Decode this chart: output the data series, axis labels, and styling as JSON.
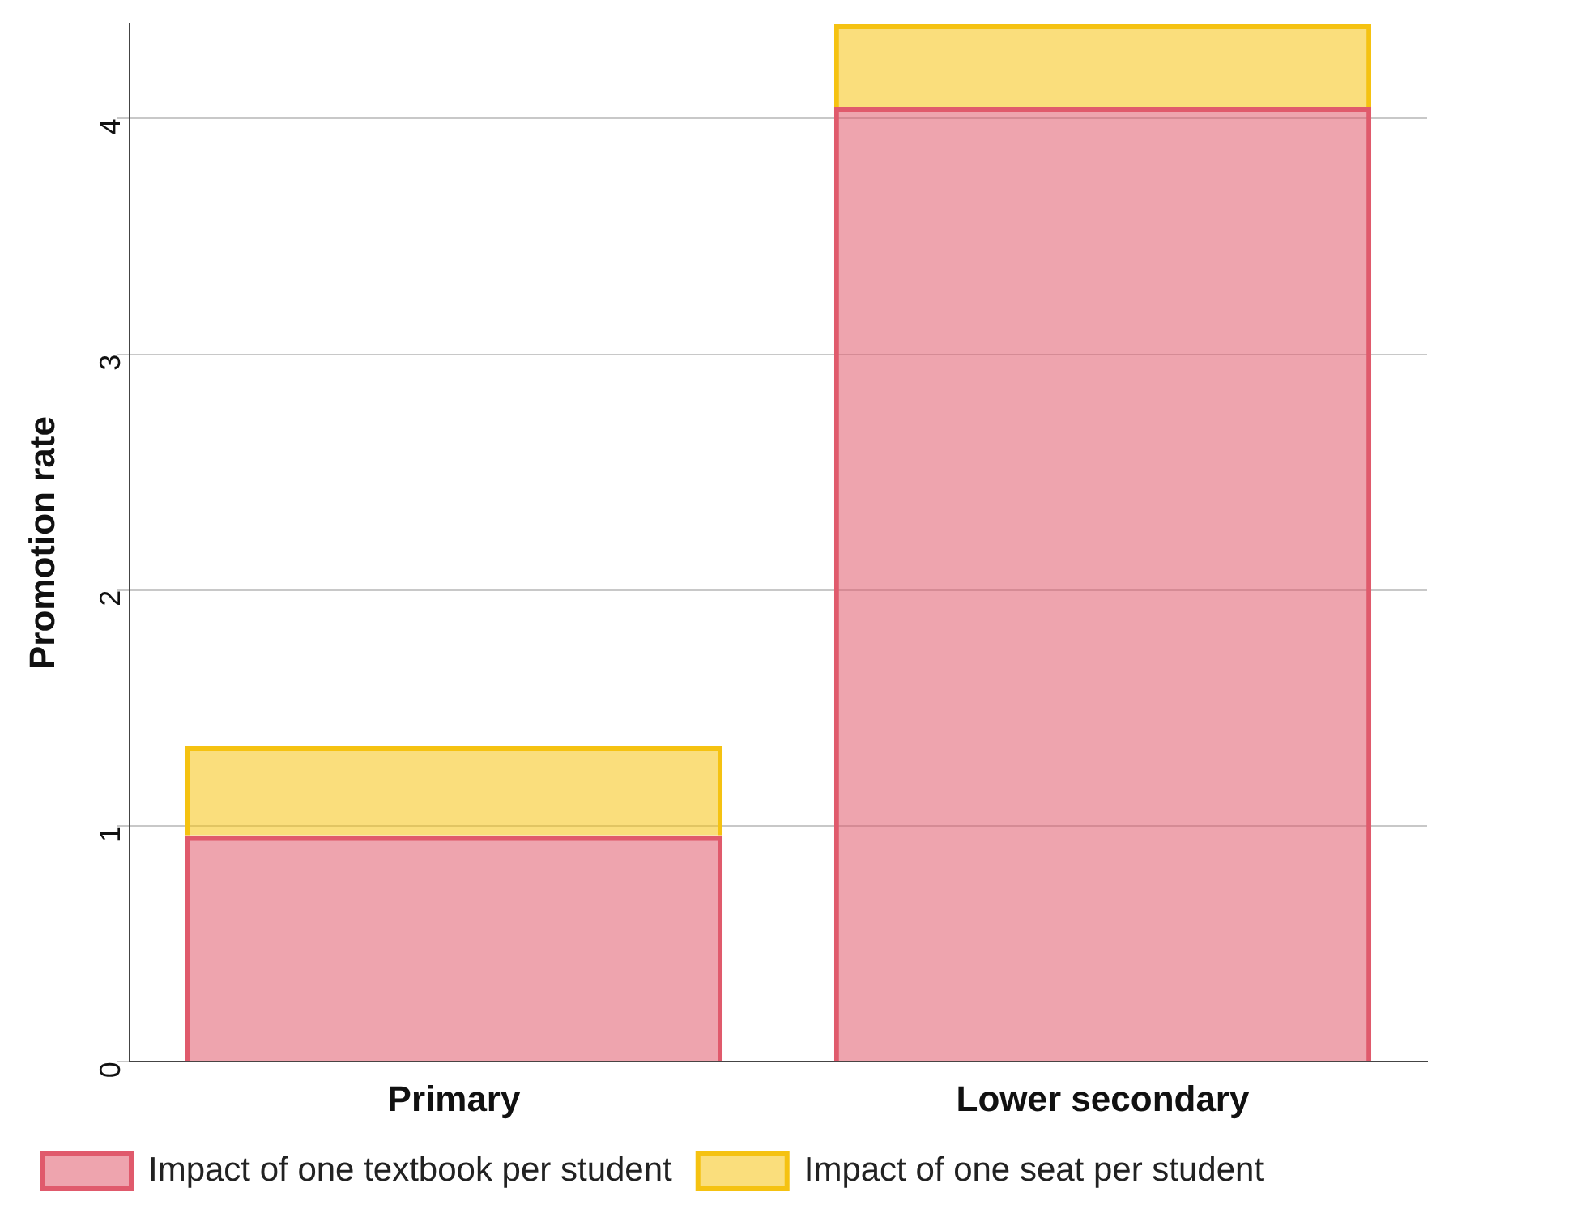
{
  "chart_data": {
    "type": "bar",
    "ylabel": "Promotion rate",
    "categories": [
      "Primary",
      "Lower secondary"
    ],
    "stacked": true,
    "series": [
      {
        "name": "Impact of one textbook per student",
        "color": "#e05a6c",
        "values": [
          0.96,
          4.05
        ]
      },
      {
        "name": "Impact of one seat per student",
        "color": "#f5c211",
        "values": [
          0.38,
          0.35
        ]
      }
    ],
    "ylim": [
      0,
      4.4
    ],
    "yticks": [
      0,
      1,
      2,
      3,
      4
    ],
    "grid": "y",
    "legend": "bottom"
  }
}
